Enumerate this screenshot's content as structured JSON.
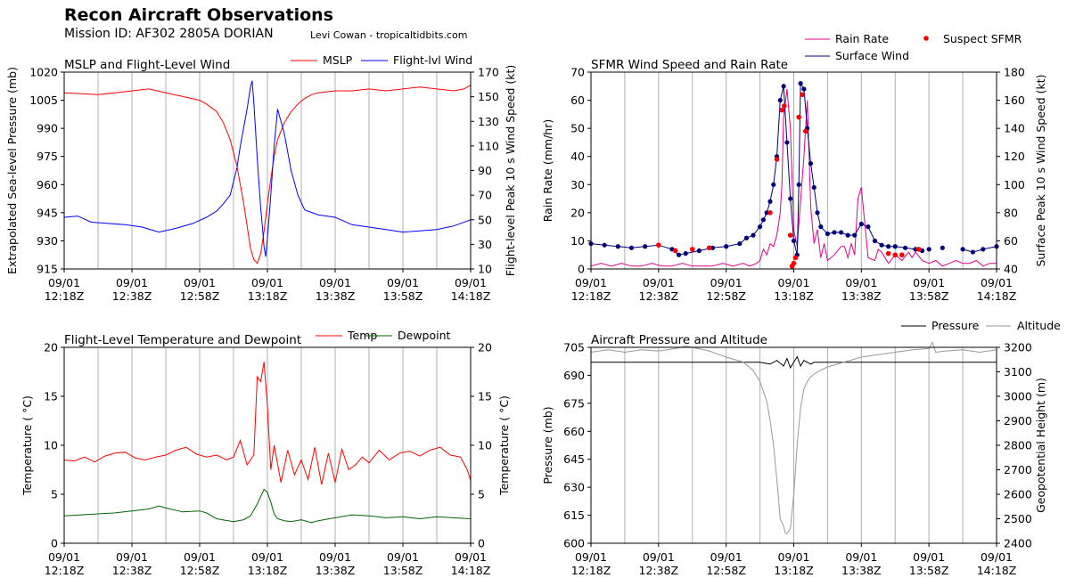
{
  "header": {
    "title": "Recon Aircraft Observations",
    "mission": "Mission ID: AF302 2805A DORIAN",
    "credit": "Levi Cowan - tropicaltidbits.com"
  },
  "x_axis": {
    "date_label": "09/01",
    "times": [
      "12:18Z",
      "12:38Z",
      "12:58Z",
      "13:18Z",
      "13:38Z",
      "13:58Z",
      "14:18Z"
    ],
    "range_minutes": [
      0,
      120
    ],
    "tick_minutes": [
      0,
      20,
      40,
      60,
      80,
      100,
      120
    ],
    "grid_minutes": [
      10,
      20,
      30,
      40,
      50,
      60,
      70,
      80,
      90,
      100,
      110
    ]
  },
  "chart_data": [
    {
      "id": "mslp",
      "type": "line",
      "title": "MSLP and Flight-Level Wind",
      "ylabel": "Extrapolated Sea-level Pressure (mb)",
      "y2label": "Flight-level Peak 10 s Wind Speed (kt)",
      "ylim": [
        915,
        1020
      ],
      "yticks": [
        915,
        930,
        945,
        960,
        975,
        990,
        1005,
        1020
      ],
      "y2lim": [
        10,
        170
      ],
      "y2ticks": [
        10,
        30,
        50,
        70,
        90,
        110,
        130,
        150,
        170
      ],
      "legend_position": "top-right",
      "series": [
        {
          "name": "MSLP",
          "color": "#ff0000",
          "axis": "left",
          "x": [
            0,
            5,
            10,
            15,
            20,
            25,
            30,
            35,
            40,
            42,
            45,
            47,
            49,
            51,
            53,
            54,
            55,
            56,
            57,
            58,
            59,
            60,
            61,
            62,
            63,
            65,
            67,
            69,
            71,
            73,
            75,
            80,
            85,
            90,
            95,
            100,
            105,
            110,
            115,
            118,
            120
          ],
          "y": [
            1009,
            1008.5,
            1008,
            1009,
            1010,
            1011,
            1009,
            1007,
            1005,
            1003,
            999,
            993,
            984,
            970,
            950,
            938,
            926,
            920,
            918,
            923,
            935,
            950,
            963,
            975,
            984,
            993,
            999,
            1003,
            1006,
            1008,
            1009,
            1010,
            1010,
            1011,
            1010,
            1011,
            1012,
            1011,
            1010,
            1011,
            1013
          ]
        },
        {
          "name": "Flight-lvl Wind",
          "color": "#0000ff",
          "axis": "right",
          "x": [
            0,
            4,
            8,
            13,
            18,
            23,
            28,
            33,
            38,
            42,
            45,
            47,
            49,
            51,
            52,
            53,
            54,
            55,
            55.5,
            56,
            57,
            58,
            58.5,
            59,
            59.5,
            60,
            61,
            62,
            63,
            65,
            67,
            69,
            71,
            73,
            75,
            80,
            85,
            90,
            95,
            100,
            105,
            110,
            115,
            120
          ],
          "y": [
            52,
            53,
            48,
            47,
            46,
            44,
            40,
            43,
            47,
            52,
            57,
            63,
            70,
            92,
            110,
            125,
            140,
            158,
            163,
            145,
            100,
            60,
            45,
            28,
            20,
            35,
            70,
            110,
            140,
            120,
            90,
            70,
            58,
            56,
            54,
            52,
            46,
            44,
            42,
            40,
            41,
            42,
            45,
            50
          ]
        }
      ]
    },
    {
      "id": "sfmr",
      "type": "line",
      "title": "SFMR Wind Speed and Rain Rate",
      "ylabel": "Rain Rate (mm/hr)",
      "y2label": "Surface Peak 10 s Wind Speed (kt)",
      "ylim": [
        0,
        70
      ],
      "yticks": [
        0,
        10,
        20,
        30,
        40,
        50,
        60,
        70
      ],
      "y2lim": [
        40,
        180
      ],
      "y2ticks": [
        40,
        60,
        80,
        100,
        120,
        140,
        160,
        180
      ],
      "legend_position": "top-right, outside",
      "series": [
        {
          "name": "Rain Rate",
          "color": "#e0008c",
          "axis": "left",
          "x": [
            0,
            3,
            6,
            9,
            12,
            15,
            18,
            21,
            24,
            27,
            30,
            33,
            36,
            39,
            42,
            45,
            47,
            49,
            50,
            51,
            52,
            53,
            54,
            55,
            56,
            56.5,
            57,
            58,
            59,
            60,
            61,
            62,
            63,
            64,
            65,
            66,
            67,
            68,
            69,
            70,
            72,
            74,
            75,
            76,
            77,
            78,
            79,
            80,
            82,
            84,
            85,
            86,
            88,
            90,
            92,
            94,
            95,
            96,
            98,
            100,
            102,
            104,
            106,
            108,
            110,
            112,
            114,
            116,
            118,
            120
          ],
          "y": [
            1,
            2,
            1,
            2,
            1,
            1,
            2,
            1,
            1,
            2,
            1,
            1,
            1,
            2,
            1,
            2,
            1,
            2,
            3,
            7,
            5,
            9,
            8,
            12,
            20,
            30,
            54,
            64,
            50,
            14,
            8,
            24,
            40,
            60,
            22,
            9,
            14,
            4,
            9,
            3,
            5,
            8,
            8,
            4,
            9,
            5,
            25,
            29,
            4,
            3,
            7,
            6,
            2,
            5,
            3,
            6,
            4,
            6,
            3,
            2,
            3,
            1,
            2,
            3,
            2,
            2,
            3,
            1,
            2,
            2
          ]
        },
        {
          "name": "Surface Wind",
          "color": "#00007a",
          "axis": "right",
          "x": [
            0,
            4,
            8,
            12,
            16,
            20,
            24,
            26,
            28,
            32,
            36,
            40,
            44,
            46,
            48,
            50,
            51,
            52,
            53,
            54,
            55,
            56,
            57,
            58,
            59,
            60,
            61,
            61.5,
            62,
            63,
            64,
            65,
            66,
            67,
            68,
            70,
            72,
            74,
            76,
            78,
            80,
            82,
            84,
            86,
            88,
            90,
            93,
            96,
            98,
            100,
            104,
            110,
            113,
            116,
            120
          ],
          "y": [
            58,
            57,
            56,
            55,
            56,
            57,
            54,
            50,
            51,
            53,
            55,
            56,
            58,
            62,
            64,
            70,
            75,
            80,
            88,
            100,
            120,
            160,
            170,
            130,
            90,
            60,
            50,
            100,
            172,
            168,
            140,
            115,
            98,
            80,
            70,
            65,
            66,
            66,
            64,
            64,
            72,
            70,
            60,
            57,
            56,
            56,
            55,
            54,
            53,
            54,
            55,
            54,
            52,
            54,
            56
          ]
        }
      ],
      "suspect_points": {
        "name": "Suspect SFMR",
        "color": "#ff0000",
        "x": [
          20,
          25,
          30,
          35,
          53,
          55,
          56.5,
          57.2,
          59,
          59.5,
          60,
          60.5,
          61.5,
          62.5,
          63.5,
          88,
          90,
          92,
          97
        ],
        "y": [
          57,
          53,
          54,
          55,
          80,
          118,
          153,
          156,
          64,
          42,
          44,
          48,
          148,
          164,
          138,
          51,
          50,
          50,
          54
        ]
      },
      "gap_minutes": [
        98,
        110
      ]
    },
    {
      "id": "temp",
      "type": "line",
      "title": "Flight-Level Temperature and Dewpoint",
      "ylabel": "Temperature ( °C)",
      "y2label": "Temperature ( °C)",
      "ylim": [
        0,
        20
      ],
      "yticks": [
        0,
        5,
        10,
        15,
        20
      ],
      "legend_position": "top-right",
      "series": [
        {
          "name": "Temp",
          "color": "#ff0000",
          "x": [
            0,
            3,
            6,
            9,
            12,
            15,
            18,
            21,
            24,
            27,
            30,
            33,
            36,
            39,
            42,
            45,
            48,
            50,
            52,
            54,
            56,
            57,
            58,
            59,
            60,
            61,
            62,
            64,
            66,
            68,
            70,
            72,
            74,
            76,
            78,
            80,
            82,
            84,
            86,
            88,
            90,
            93,
            96,
            99,
            102,
            105,
            108,
            111,
            114,
            117,
            119,
            120
          ],
          "y": [
            8.5,
            8.4,
            8.8,
            8.3,
            8.9,
            9.2,
            9.3,
            8.7,
            8.5,
            8.8,
            9,
            9.5,
            9.8,
            9.1,
            8.8,
            9,
            8.5,
            8.8,
            10.5,
            8,
            9,
            17,
            16.5,
            18.5,
            14,
            7.5,
            10,
            6.2,
            9.5,
            7,
            8.5,
            6.5,
            9.8,
            6,
            9.2,
            6.2,
            9.6,
            7.5,
            8,
            8.8,
            8.2,
            9.5,
            8.5,
            9.2,
            9.4,
            8.9,
            9.5,
            9.8,
            9,
            8.8,
            7.5,
            6.4
          ]
        },
        {
          "name": "Dewpoint",
          "color": "#006400",
          "x": [
            0,
            5,
            10,
            15,
            20,
            25,
            28,
            30,
            35,
            40,
            42,
            45,
            50,
            53,
            55,
            57,
            59,
            60,
            61,
            62,
            63,
            65,
            67,
            70,
            73,
            75,
            80,
            85,
            90,
            95,
            100,
            105,
            110,
            115,
            120
          ],
          "y": [
            2.8,
            2.9,
            3,
            3.1,
            3.3,
            3.5,
            3.8,
            3.6,
            3.2,
            3.3,
            3.1,
            2.5,
            2.2,
            2.4,
            2.8,
            4,
            5.5,
            5.2,
            4.2,
            3,
            2.5,
            2.3,
            2.2,
            2.4,
            2.1,
            2.3,
            2.6,
            2.9,
            2.8,
            2.6,
            2.7,
            2.5,
            2.7,
            2.6,
            2.5
          ]
        }
      ]
    },
    {
      "id": "altitude",
      "type": "line",
      "title": "Aircraft Pressure and Altitude",
      "ylabel": "Pressure (mb)",
      "y2label": "Geopotential Height (m)",
      "ylim": [
        600,
        705
      ],
      "yticks": [
        600,
        615,
        630,
        645,
        660,
        675,
        690,
        705
      ],
      "y2lim": [
        2400,
        3200
      ],
      "y2ticks": [
        2400,
        2500,
        2600,
        2700,
        2800,
        2900,
        3000,
        3100,
        3200
      ],
      "legend_position": "top-right, outside",
      "series": [
        {
          "name": "Pressure",
          "color": "#000000",
          "axis": "left",
          "x": [
            0,
            10,
            20,
            30,
            40,
            45,
            50,
            53,
            55,
            57,
            58,
            59,
            60,
            61,
            62,
            63,
            64,
            65,
            66,
            67,
            70,
            75,
            80,
            90,
            100,
            110,
            120
          ],
          "y": [
            697,
            697,
            697,
            697,
            697,
            697,
            697,
            696,
            698,
            695,
            699,
            694,
            697,
            700,
            695,
            698,
            697,
            696,
            697,
            697,
            697,
            697,
            697,
            697,
            697,
            697,
            697
          ]
        },
        {
          "name": "Altitude",
          "color": "#999999",
          "axis": "right",
          "x": [
            0,
            5,
            10,
            15,
            20,
            25,
            28,
            30,
            35,
            38,
            40,
            45,
            48,
            50,
            52,
            53,
            54,
            55,
            56,
            57,
            57.5,
            58,
            59,
            60,
            61,
            62,
            63,
            64,
            65,
            67,
            70,
            75,
            80,
            85,
            90,
            95,
            100,
            101,
            102,
            105,
            110,
            115,
            120
          ],
          "y": [
            3180,
            3190,
            3180,
            3190,
            3185,
            3195,
            3205,
            3200,
            3185,
            3170,
            3160,
            3140,
            3105,
            3060,
            2980,
            2900,
            2800,
            2660,
            2500,
            2470,
            2440,
            2440,
            2460,
            2600,
            2800,
            2950,
            3030,
            3060,
            3080,
            3100,
            3120,
            3140,
            3160,
            3170,
            3180,
            3190,
            3195,
            3220,
            3180,
            3185,
            3190,
            3180,
            3190
          ]
        }
      ]
    }
  ]
}
